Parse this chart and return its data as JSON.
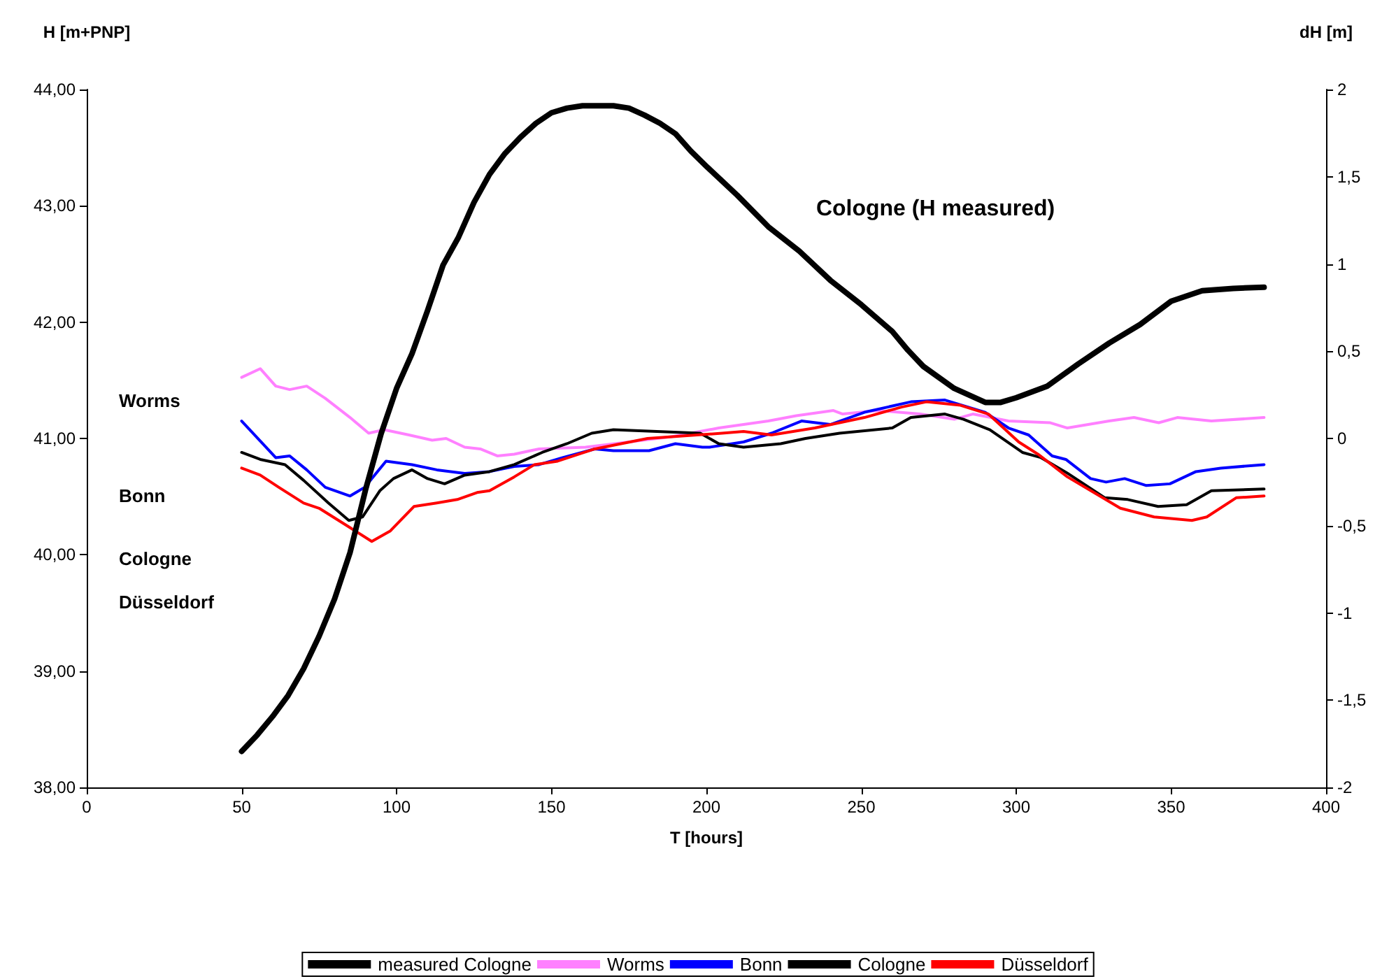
{
  "chart_data": {
    "type": "line",
    "xlabel": "T [hours]",
    "ylabel": "H [m+PNP]",
    "y2label": "dH [m]",
    "xlim": [
      0,
      400
    ],
    "xticks": [
      0,
      50,
      100,
      150,
      200,
      250,
      300,
      350,
      400
    ],
    "ylim": [
      38,
      44
    ],
    "yticks": [
      {
        "value": 38,
        "label": "38,00"
      },
      {
        "value": 39,
        "label": "39,00"
      },
      {
        "value": 40,
        "label": "40,00"
      },
      {
        "value": 41,
        "label": "41,00"
      },
      {
        "value": 42,
        "label": "42,00"
      },
      {
        "value": 43,
        "label": "43,00"
      },
      {
        "value": 44,
        "label": "44,00"
      }
    ],
    "y2lim": [
      -2,
      2
    ],
    "y2ticks": [
      -2,
      {
        "value": -1.5,
        "label": "-1,5"
      },
      -1,
      {
        "value": -0.5,
        "label": "-0,5"
      },
      0,
      {
        "value": 0.5,
        "label": "0,5"
      },
      1,
      {
        "value": 1.5,
        "label": "1,5"
      },
      2
    ],
    "grid": false,
    "legend": "bottom",
    "marker": "none",
    "line_style": "solid",
    "annotations": [
      "Worms",
      "Bonn",
      "Cologne",
      "Düsseldorf",
      {
        "text": "Cologne (H measured)",
        "x": 230,
        "y": 42.61
      }
    ],
    "series": [
      {
        "name": "measured Cologne",
        "color": "#000000",
        "x": [
          50,
          55,
          60,
          65,
          70,
          75,
          80,
          85,
          90,
          95,
          100,
          105,
          110,
          115,
          120,
          125,
          130,
          135,
          140,
          145,
          150,
          155,
          160,
          170,
          175,
          180,
          185,
          190,
          195,
          200,
          210,
          220,
          230,
          240,
          250,
          260,
          265,
          270,
          280,
          290,
          295,
          300,
          310,
          320,
          330,
          340,
          350,
          360,
          370,
          380
        ],
        "values": [
          38.31,
          38.45,
          38.61,
          38.79,
          39.02,
          39.3,
          39.62,
          40.02,
          40.56,
          41.04,
          41.43,
          41.73,
          42.1,
          42.49,
          42.73,
          43.03,
          43.27,
          43.45,
          43.59,
          43.71,
          43.8,
          43.84,
          43.86,
          43.86,
          43.84,
          43.78,
          43.71,
          43.62,
          43.47,
          43.34,
          43.09,
          42.82,
          42.61,
          42.36,
          42.15,
          41.92,
          41.76,
          41.62,
          41.43,
          41.31,
          41.31,
          41.35,
          41.45,
          41.64,
          41.82,
          41.98,
          42.18,
          42.27,
          42.29,
          42.3
        ]
      },
      {
        "name": "Worms",
        "color": "#ff80ff",
        "axis": "y2",
        "x": [
          50,
          56,
          61,
          65.5,
          71,
          77,
          85,
          91,
          96,
          104,
          111.5,
          116,
          122,
          127,
          132.5,
          138,
          146,
          161,
          175,
          188.7,
          204,
          220,
          229,
          241,
          244,
          255.5,
          269,
          280,
          286,
          297.5,
          311,
          316.5,
          330,
          338,
          346,
          352,
          363,
          380
        ],
        "values": [
          0.35,
          0.4,
          0.3,
          0.28,
          0.3,
          0.23,
          0.12,
          0.03,
          0.05,
          0.02,
          -0.01,
          0.0,
          -0.05,
          -0.06,
          -0.1,
          -0.09,
          -0.06,
          -0.05,
          -0.02,
          0.01,
          0.06,
          0.1,
          0.13,
          0.16,
          0.14,
          0.16,
          0.14,
          0.11,
          0.14,
          0.1,
          0.09,
          0.06,
          0.1,
          0.12,
          0.09,
          0.12,
          0.1,
          0.12
        ]
      },
      {
        "name": "Bonn",
        "color": "#0000ff",
        "axis": "y2",
        "x": [
          50,
          61,
          65.5,
          71,
          77,
          85,
          89.7,
          96.6,
          105,
          113,
          122,
          130,
          138,
          146,
          153.6,
          164,
          170,
          181.5,
          190,
          198.7,
          201,
          212,
          221,
          230.7,
          240,
          251,
          266,
          277,
          290,
          297.5,
          304,
          311.6,
          316,
          324,
          329,
          335,
          342,
          349.6,
          358,
          366,
          380
        ],
        "values": [
          0.1,
          -0.11,
          -0.1,
          -0.18,
          -0.28,
          -0.33,
          -0.28,
          -0.13,
          -0.15,
          -0.18,
          -0.2,
          -0.19,
          -0.16,
          -0.15,
          -0.11,
          -0.06,
          -0.07,
          -0.07,
          -0.03,
          -0.05,
          -0.05,
          -0.02,
          0.03,
          0.1,
          0.08,
          0.15,
          0.21,
          0.22,
          0.15,
          0.06,
          0.02,
          -0.1,
          -0.12,
          -0.23,
          -0.25,
          -0.23,
          -0.27,
          -0.26,
          -0.19,
          -0.17,
          -0.15
        ]
      },
      {
        "name": "Cologne",
        "color": "#000000",
        "axis": "y2",
        "x": [
          50,
          56,
          64,
          70,
          78,
          84.6,
          89,
          94.6,
          99,
          105,
          110,
          115.5,
          122,
          130,
          138,
          147,
          155,
          163,
          170,
          184,
          198,
          204,
          212,
          224,
          232,
          243,
          260,
          266,
          277,
          283,
          291.5,
          302,
          308,
          316.6,
          328.6,
          336,
          345.8,
          355,
          363,
          380
        ],
        "values": [
          -0.08,
          -0.12,
          -0.15,
          -0.24,
          -0.37,
          -0.47,
          -0.45,
          -0.3,
          -0.23,
          -0.18,
          -0.23,
          -0.26,
          -0.21,
          -0.19,
          -0.15,
          -0.08,
          -0.03,
          0.03,
          0.05,
          0.04,
          0.03,
          -0.03,
          -0.05,
          -0.03,
          0.0,
          0.03,
          0.06,
          0.12,
          0.14,
          0.11,
          0.05,
          -0.08,
          -0.11,
          -0.2,
          -0.34,
          -0.35,
          -0.39,
          -0.38,
          -0.3,
          -0.29
        ]
      },
      {
        "name": "Düsseldorf",
        "color": "#ff0000",
        "axis": "y2",
        "x": [
          50,
          56,
          62,
          70,
          75,
          84,
          92,
          98,
          105.6,
          113,
          119.6,
          126,
          130,
          138,
          144.5,
          152,
          164,
          181,
          205,
          212,
          221,
          235,
          251,
          263,
          271,
          282,
          291,
          300.8,
          307,
          316.5,
          326,
          333.6,
          344.5,
          356.7,
          361.5,
          371,
          380
        ],
        "values": [
          -0.17,
          -0.21,
          -0.28,
          -0.37,
          -0.4,
          -0.5,
          -0.59,
          -0.53,
          -0.39,
          -0.37,
          -0.35,
          -0.31,
          -0.3,
          -0.22,
          -0.15,
          -0.13,
          -0.06,
          0.0,
          0.03,
          0.04,
          0.02,
          0.06,
          0.12,
          0.18,
          0.21,
          0.19,
          0.14,
          -0.02,
          -0.09,
          -0.22,
          -0.32,
          -0.4,
          -0.45,
          -0.47,
          -0.45,
          -0.34,
          -0.33
        ]
      }
    ]
  }
}
